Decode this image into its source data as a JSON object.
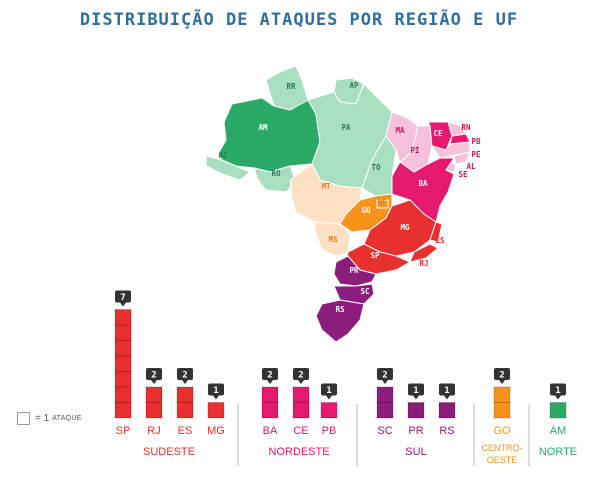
{
  "title": "DISTRIBUIÇÃO DE ATAQUES POR REGIÃO E UF",
  "legend": {
    "equals": "= 1",
    "unit": "ATAQUE"
  },
  "colors": {
    "sudeste": "#e8312f",
    "nordeste": "#e5196e",
    "nordeste_light": "#f6c1da",
    "sul": "#8d1d7d",
    "centro_oeste": "#f7941d",
    "centro_oeste_light": "#fde1c2",
    "norte": "#2baa67",
    "norte_light": "#a9dfc1"
  },
  "map_labels": [
    "RR",
    "AP",
    "AM",
    "PA",
    "MA",
    "CE",
    "RN",
    "PB",
    "PE",
    "AL",
    "SE",
    "PI",
    "AC",
    "RO",
    "TO",
    "BA",
    "MT",
    "DF",
    "GO",
    "MG",
    "ES",
    "MS",
    "SP",
    "RJ",
    "PR",
    "SC",
    "RS"
  ],
  "chart_data": {
    "type": "bar",
    "unit": "ataques",
    "categories": [
      "SP",
      "RJ",
      "ES",
      "MG",
      "BA",
      "CE",
      "PB",
      "SC",
      "PR",
      "RS",
      "GO",
      "AM"
    ],
    "values": [
      7,
      2,
      2,
      1,
      2,
      2,
      1,
      2,
      1,
      1,
      2,
      1
    ],
    "groups": [
      {
        "name": "SUDESTE",
        "states": [
          "SP",
          "RJ",
          "ES",
          "MG"
        ],
        "color": "#e8312f"
      },
      {
        "name": "NORDESTE",
        "states": [
          "BA",
          "CE",
          "PB"
        ],
        "color": "#e5196e"
      },
      {
        "name": "SUL",
        "states": [
          "SC",
          "PR",
          "RS"
        ],
        "color": "#8d1d7d"
      },
      {
        "name": "CENTRO-OESTE",
        "states": [
          "GO"
        ],
        "color": "#f7941d"
      },
      {
        "name": "NORTE",
        "states": [
          "AM"
        ],
        "color": "#2baa67"
      }
    ]
  }
}
